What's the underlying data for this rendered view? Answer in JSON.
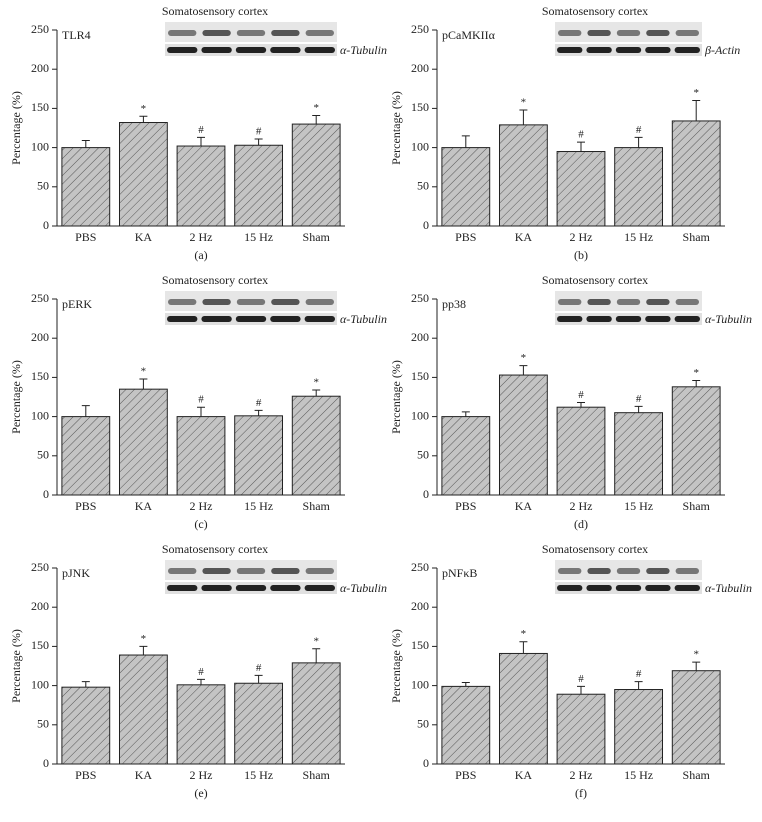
{
  "chart_data": [
    {
      "type": "bar",
      "panel_label": "(a)",
      "title": "Somatosensory cortex",
      "protein": "TLR4",
      "loading_control": "α-Tubulin",
      "ylabel": "Percentage (%)",
      "categories": [
        "PBS",
        "KA",
        "2 Hz",
        "15 Hz",
        "Sham"
      ],
      "values": [
        100,
        132,
        102,
        103,
        130
      ],
      "errors": [
        9,
        8,
        11,
        8,
        11
      ],
      "annotations": [
        null,
        "*",
        "#",
        "#",
        "*"
      ],
      "ylim": [
        0,
        250
      ],
      "yticks": [
        0,
        50,
        100,
        150,
        200,
        250
      ],
      "color": "#c4c4c4"
    },
    {
      "type": "bar",
      "panel_label": "(b)",
      "title": "Somatosensory cortex",
      "protein": "pCaMKIIα",
      "loading_control": "β-Actin",
      "ylabel": "Percentage (%)",
      "categories": [
        "PBS",
        "KA",
        "2 Hz",
        "15 Hz",
        "Sham"
      ],
      "values": [
        100,
        129,
        95,
        100,
        134
      ],
      "errors": [
        15,
        19,
        12,
        13,
        26
      ],
      "annotations": [
        null,
        "*",
        "#",
        "#",
        "*"
      ],
      "ylim": [
        0,
        250
      ],
      "yticks": [
        0,
        50,
        100,
        150,
        200,
        250
      ],
      "color": "#c4c4c4"
    },
    {
      "type": "bar",
      "panel_label": "(c)",
      "title": "Somatosensory cortex",
      "protein": "pERK",
      "loading_control": "α-Tubulin",
      "ylabel": "Percentage (%)",
      "categories": [
        "PBS",
        "KA",
        "2 Hz",
        "15 Hz",
        "Sham"
      ],
      "values": [
        100,
        135,
        100,
        101,
        126
      ],
      "errors": [
        14,
        13,
        12,
        7,
        8
      ],
      "annotations": [
        null,
        "*",
        "#",
        "#",
        "*"
      ],
      "ylim": [
        0,
        250
      ],
      "yticks": [
        0,
        50,
        100,
        150,
        200,
        250
      ],
      "color": "#c4c4c4"
    },
    {
      "type": "bar",
      "panel_label": "(d)",
      "title": "Somatosensory cortex",
      "protein": "pp38",
      "loading_control": "α-Tubulin",
      "ylabel": "Percentage (%)",
      "categories": [
        "PBS",
        "KA",
        "2 Hz",
        "15 Hz",
        "Sham"
      ],
      "values": [
        100,
        153,
        112,
        105,
        138
      ],
      "errors": [
        6,
        12,
        6,
        8,
        8
      ],
      "annotations": [
        null,
        "*",
        "#",
        "#",
        "*"
      ],
      "ylim": [
        0,
        250
      ],
      "yticks": [
        0,
        50,
        100,
        150,
        200,
        250
      ],
      "color": "#c4c4c4"
    },
    {
      "type": "bar",
      "panel_label": "(e)",
      "title": "Somatosensory cortex",
      "protein": "pJNK",
      "loading_control": "α-Tubulin",
      "ylabel": "Percentage (%)",
      "categories": [
        "PBS",
        "KA",
        "2 Hz",
        "15 Hz",
        "Sham"
      ],
      "values": [
        98,
        139,
        101,
        103,
        129
      ],
      "errors": [
        7,
        11,
        7,
        10,
        18
      ],
      "annotations": [
        null,
        "*",
        "#",
        "#",
        "*"
      ],
      "ylim": [
        0,
        250
      ],
      "yticks": [
        0,
        50,
        100,
        150,
        200,
        250
      ],
      "color": "#c4c4c4"
    },
    {
      "type": "bar",
      "panel_label": "(f)",
      "title": "Somatosensory cortex",
      "protein": "pNFκB",
      "loading_control": "α-Tubulin",
      "ylabel": "Percentage (%)",
      "categories": [
        "PBS",
        "KA",
        "2 Hz",
        "15 Hz",
        "Sham"
      ],
      "values": [
        99,
        141,
        89,
        95,
        119
      ],
      "errors": [
        5,
        15,
        10,
        10,
        11
      ],
      "annotations": [
        null,
        "*",
        "#",
        "#",
        "*"
      ],
      "ylim": [
        0,
        250
      ],
      "yticks": [
        0,
        50,
        100,
        150,
        200,
        250
      ],
      "color": "#c4c4c4"
    }
  ]
}
